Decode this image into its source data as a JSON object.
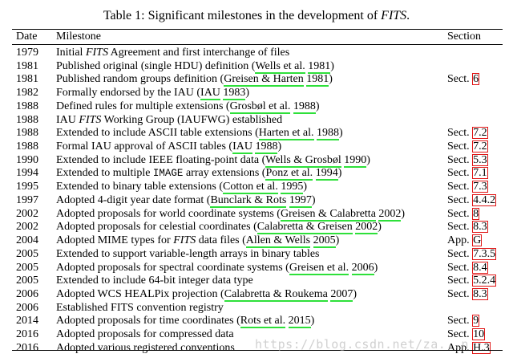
{
  "caption": {
    "prefix": "Table 1: Significant milestones in the development of ",
    "italic": "FITS",
    "suffix": "."
  },
  "header": {
    "date": "Date",
    "milestone": "Milestone",
    "section": "Section"
  },
  "rows": [
    {
      "date": "1979",
      "parts": [
        {
          "t": "Initial "
        },
        {
          "t": "FITS",
          "it": true
        },
        {
          "t": " Agreement and first interchange of files"
        }
      ],
      "sec": []
    },
    {
      "date": "1981",
      "parts": [
        {
          "t": "Published original (single HDU) definition ("
        },
        {
          "t": "Wells et al.",
          "cite": true
        },
        {
          "t": " "
        },
        {
          "t": "1981",
          "cite": true
        },
        {
          "t": ")"
        }
      ],
      "sec": []
    },
    {
      "date": "1981",
      "parts": [
        {
          "t": "Published random groups definition ("
        },
        {
          "t": "Greisen & Harten",
          "cite": true
        },
        {
          "t": " "
        },
        {
          "t": "1981",
          "cite": true
        },
        {
          "t": ")"
        }
      ],
      "sec": [
        {
          "t": "Sect. "
        },
        {
          "t": "6",
          "ref": true
        }
      ]
    },
    {
      "date": "1982",
      "parts": [
        {
          "t": "Formally endorsed by the IAU ("
        },
        {
          "t": "IAU",
          "cite": true
        },
        {
          "t": " "
        },
        {
          "t": "1983",
          "cite": true
        },
        {
          "t": ")"
        }
      ],
      "sec": []
    },
    {
      "date": "1988",
      "parts": [
        {
          "t": "Defined rules for multiple extensions ("
        },
        {
          "t": "Grosbøl et al.",
          "cite": true
        },
        {
          "t": " "
        },
        {
          "t": "1988",
          "cite": true
        },
        {
          "t": ")"
        }
      ],
      "sec": []
    },
    {
      "date": "1988",
      "parts": [
        {
          "t": "IAU "
        },
        {
          "t": "FITS",
          "it": true
        },
        {
          "t": " Working Group (IAUFWG) established"
        }
      ],
      "sec": []
    },
    {
      "date": "1988",
      "parts": [
        {
          "t": "Extended to include ASCII table extensions ("
        },
        {
          "t": "Harten et al.",
          "cite": true
        },
        {
          "t": " "
        },
        {
          "t": "1988",
          "cite": true
        },
        {
          "t": ")"
        }
      ],
      "sec": [
        {
          "t": "Sect. "
        },
        {
          "t": "7.2",
          "ref": true
        }
      ]
    },
    {
      "date": "1988",
      "parts": [
        {
          "t": "Formal IAU approval of ASCII tables ("
        },
        {
          "t": "IAU",
          "cite": true
        },
        {
          "t": " "
        },
        {
          "t": "1988",
          "cite": true
        },
        {
          "t": ")"
        }
      ],
      "sec": [
        {
          "t": "Sect. "
        },
        {
          "t": "7.2",
          "ref": true
        }
      ]
    },
    {
      "date": "1990",
      "parts": [
        {
          "t": "Extended to include IEEE floating-point data ("
        },
        {
          "t": "Wells & Grosbøl",
          "cite": true
        },
        {
          "t": " "
        },
        {
          "t": "1990",
          "cite": true
        },
        {
          "t": ")"
        }
      ],
      "sec": [
        {
          "t": "Sect. "
        },
        {
          "t": "5.3",
          "ref": true
        }
      ]
    },
    {
      "date": "1994",
      "parts": [
        {
          "t": "Extended to multiple "
        },
        {
          "t": "IMAGE",
          "mono": true
        },
        {
          "t": " array extensions ("
        },
        {
          "t": "Ponz et al.",
          "cite": true
        },
        {
          "t": " "
        },
        {
          "t": "1994",
          "cite": true
        },
        {
          "t": ")"
        }
      ],
      "sec": [
        {
          "t": "Sect. "
        },
        {
          "t": "7.1",
          "ref": true
        }
      ]
    },
    {
      "date": "1995",
      "parts": [
        {
          "t": "Extended to binary table extensions ("
        },
        {
          "t": "Cotton et al.",
          "cite": true
        },
        {
          "t": " "
        },
        {
          "t": "1995",
          "cite": true
        },
        {
          "t": ")"
        }
      ],
      "sec": [
        {
          "t": "Sect. "
        },
        {
          "t": "7.3",
          "ref": true
        }
      ]
    },
    {
      "date": "1997",
      "parts": [
        {
          "t": "Adopted 4-digit year date format ("
        },
        {
          "t": "Bunclark & Rots",
          "cite": true
        },
        {
          "t": " "
        },
        {
          "t": "1997",
          "cite": true
        },
        {
          "t": ")"
        }
      ],
      "sec": [
        {
          "t": "Sect. "
        },
        {
          "t": "4.4.2",
          "ref": true
        }
      ]
    },
    {
      "date": "2002",
      "parts": [
        {
          "t": "Adopted proposals for world coordinate systems ("
        },
        {
          "t": "Greisen & Calabretta",
          "cite": true
        },
        {
          "t": " "
        },
        {
          "t": "2002",
          "cite": true
        },
        {
          "t": ")"
        }
      ],
      "sec": [
        {
          "t": "Sect. "
        },
        {
          "t": "8",
          "ref": true
        }
      ]
    },
    {
      "date": "2002",
      "parts": [
        {
          "t": "Adopted proposals for celestial coordinates ("
        },
        {
          "t": "Calabretta & Greisen",
          "cite": true
        },
        {
          "t": " "
        },
        {
          "t": "2002",
          "cite": true
        },
        {
          "t": ")"
        }
      ],
      "sec": [
        {
          "t": "Sect. "
        },
        {
          "t": "8.3",
          "ref": true
        }
      ]
    },
    {
      "date": "2004",
      "parts": [
        {
          "t": "Adopted MIME types for "
        },
        {
          "t": "FITS",
          "it": true
        },
        {
          "t": " data files ("
        },
        {
          "t": "Allen & Wells",
          "cite": true
        },
        {
          "t": " "
        },
        {
          "t": "2005",
          "cite": true
        },
        {
          "t": ")"
        }
      ],
      "sec": [
        {
          "t": "App. "
        },
        {
          "t": "G",
          "ref": true
        }
      ]
    },
    {
      "date": "2005",
      "parts": [
        {
          "t": "Extended to support variable-length arrays in binary tables"
        }
      ],
      "sec": [
        {
          "t": "Sect. "
        },
        {
          "t": "7.3.5",
          "ref": true
        }
      ]
    },
    {
      "date": "2005",
      "parts": [
        {
          "t": "Adopted proposals for spectral coordinate systems ("
        },
        {
          "t": "Greisen et al.",
          "cite": true
        },
        {
          "t": " "
        },
        {
          "t": "2006",
          "cite": true
        },
        {
          "t": ")"
        }
      ],
      "sec": [
        {
          "t": "Sect. "
        },
        {
          "t": "8.4",
          "ref": true
        }
      ]
    },
    {
      "date": "2005",
      "parts": [
        {
          "t": "Extended to include 64-bit integer data type"
        }
      ],
      "sec": [
        {
          "t": "Sect. "
        },
        {
          "t": "5.2.4",
          "ref": true
        }
      ]
    },
    {
      "date": "2006",
      "parts": [
        {
          "t": "Adopted WCS HEALPix projection ("
        },
        {
          "t": "Calabretta & Roukema",
          "cite": true
        },
        {
          "t": " "
        },
        {
          "t": "2007",
          "cite": true
        },
        {
          "t": ")"
        }
      ],
      "sec": [
        {
          "t": "Sect. "
        },
        {
          "t": "8.3",
          "ref": true
        }
      ]
    },
    {
      "date": "2006",
      "parts": [
        {
          "t": "Established FITS convention registry"
        }
      ],
      "sec": []
    },
    {
      "date": "2014",
      "parts": [
        {
          "t": "Adopted proposals for time coordinates ("
        },
        {
          "t": "Rots et al.",
          "cite": true
        },
        {
          "t": " "
        },
        {
          "t": "2015",
          "cite": true
        },
        {
          "t": ")"
        }
      ],
      "sec": [
        {
          "t": "Sect. "
        },
        {
          "t": "9",
          "ref": true
        }
      ]
    },
    {
      "date": "2016",
      "parts": [
        {
          "t": "Adopted proposals for compressed data"
        }
      ],
      "sec": [
        {
          "t": "Sect. "
        },
        {
          "t": "10",
          "ref": true
        }
      ]
    },
    {
      "date": "2016",
      "parts": [
        {
          "t": "Adopted various registered conventions"
        }
      ],
      "sec": [
        {
          "t": "App. "
        },
        {
          "t": "H.3",
          "ref": true
        }
      ]
    }
  ],
  "watermark": "https://blog.csdn.net/za...n"
}
